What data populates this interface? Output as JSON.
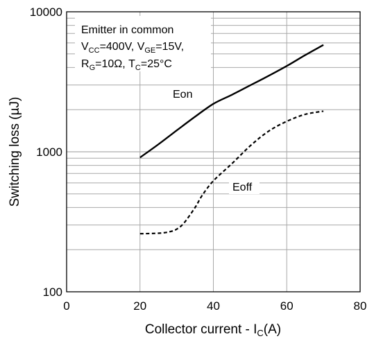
{
  "chart_data": {
    "type": "line",
    "x_scale": "linear",
    "y_scale": "log",
    "xlim": [
      0,
      80
    ],
    "ylim": [
      100,
      10000
    ],
    "xticks": [
      "0",
      "20",
      "40",
      "60",
      "80"
    ],
    "yticks": [
      "100",
      "1000",
      "10000"
    ],
    "grid": true,
    "xlabel": {
      "main": "Collector current - I",
      "sub": "C",
      "tail": "(A)"
    },
    "ylabel": "Switching loss (µJ)",
    "annotation": {
      "line1": "Emitter in common",
      "line2": {
        "v1": "V",
        "s1": "CC",
        "t1": "=400V, ",
        "v2": "V",
        "s2": "GE",
        "t2": "=15V,"
      },
      "line3": {
        "r": "R",
        "rs": "G",
        "rt": "=10Ω, ",
        "t": "T",
        "ts": "C",
        "tt": "=25°C"
      }
    },
    "series": [
      {
        "name": "Eon",
        "style": "solid",
        "color": "#000000",
        "x": [
          20,
          25,
          30,
          35,
          40,
          45,
          50,
          55,
          60,
          65,
          70
        ],
        "y": [
          910,
          1130,
          1420,
          1780,
          2200,
          2550,
          2980,
          3480,
          4100,
          4900,
          5800
        ]
      },
      {
        "name": "Eoff",
        "style": "dashed",
        "color": "#000000",
        "x": [
          20,
          25,
          28,
          30,
          32,
          35,
          37,
          40,
          45,
          50,
          55,
          60,
          65,
          70
        ],
        "y": [
          260,
          262,
          268,
          280,
          310,
          400,
          490,
          620,
          820,
          1100,
          1400,
          1650,
          1850,
          1950
        ]
      }
    ]
  }
}
